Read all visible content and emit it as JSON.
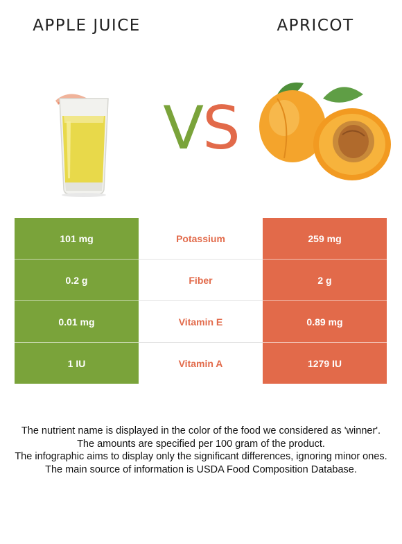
{
  "header": {
    "left_food": "APPLE JUICE",
    "right_food": "APRICOT",
    "vs_v": "V",
    "vs_s": "S"
  },
  "colors": {
    "left_accent": "#7aa33a",
    "right_accent": "#e26a4a"
  },
  "icons": {
    "left_image": "apple-juice-glass-icon",
    "right_image": "apricot-fruit-icon"
  },
  "rows": [
    {
      "left": "101 mg",
      "nutrient": "Potassium",
      "right": "259 mg"
    },
    {
      "left": "0.2 g",
      "nutrient": "Fiber",
      "right": "2 g"
    },
    {
      "left": "0.01 mg",
      "nutrient": "Vitamin E",
      "right": "0.89 mg"
    },
    {
      "left": "1 IU",
      "nutrient": "Vitamin A",
      "right": "1279 IU"
    }
  ],
  "notes": [
    "The nutrient name is displayed in the color of the food we considered as 'winner'.",
    "The amounts are specified per 100 gram of the product.",
    "The infographic aims to display only the significant differences, ignoring minor ones.",
    "The main source of information is USDA Food Composition Database."
  ]
}
